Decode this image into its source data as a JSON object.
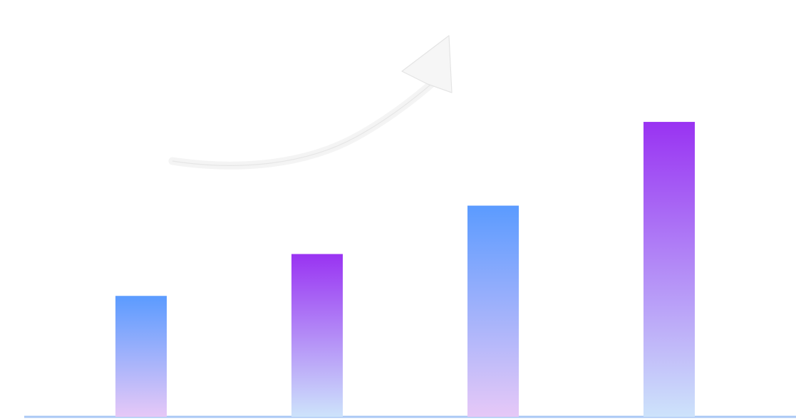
{
  "chart_data": {
    "type": "bar",
    "categories": [
      "",
      "",
      "",
      ""
    ],
    "values": [
      1.3,
      1.75,
      2.27,
      3.17
    ],
    "ylim": [
      0,
      4.48
    ],
    "gridlines": [
      1,
      2,
      3
    ],
    "grid": true,
    "legend": "none",
    "trend_arrow": "up"
  },
  "colors": {
    "blue": "#5b9bff",
    "purple": "#9933f2",
    "lavender": "#e6c8f7",
    "pale_blue": "#cde3fb",
    "axis_blue": "#a9c8f5"
  }
}
